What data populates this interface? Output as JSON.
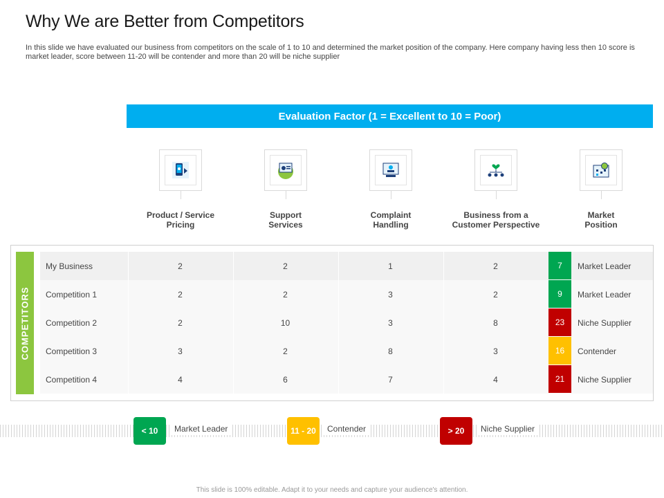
{
  "title": "Why We are Better from Competitors",
  "intro": "In this slide we have evaluated our business from competitors on the scale of  1 to  10 and determined the market position of the company. Here company having less then 10 score is market leader, score between 11-20 will be contender and more than 20 will be niche supplier",
  "banner": "Evaluation Factor (1 = Excellent to 10 = Poor)",
  "factors": [
    {
      "line1": "Product / Service",
      "line2": "Pricing",
      "icon": "mobile-pricing-icon"
    },
    {
      "line1": "Support",
      "line2": "Services",
      "icon": "support-services-icon"
    },
    {
      "line1": "Complaint",
      "line2": "Handling",
      "icon": "complaint-handling-icon"
    },
    {
      "line1": "Business from a",
      "line2": "Customer Perspective",
      "icon": "customer-perspective-icon"
    },
    {
      "line1": "Market",
      "line2": "Position",
      "icon": "market-position-icon"
    }
  ],
  "competitors_label": "COMPETITORS",
  "rows": [
    {
      "name": "My Business",
      "scores": [
        "2",
        "2",
        "1",
        "2"
      ],
      "total": "7",
      "status": "Market Leader",
      "color": "#00a651"
    },
    {
      "name": "Competition 1",
      "scores": [
        "2",
        "2",
        "3",
        "2"
      ],
      "total": "9",
      "status": "Market Leader",
      "color": "#00a651"
    },
    {
      "name": "Competition 2",
      "scores": [
        "2",
        "10",
        "3",
        "8"
      ],
      "total": "23",
      "status": "Niche Supplier",
      "color": "#c00000"
    },
    {
      "name": "Competition 3",
      "scores": [
        "3",
        "2",
        "8",
        "3"
      ],
      "total": "16",
      "status": "Contender",
      "color": "#ffc000"
    },
    {
      "name": "Competition 4",
      "scores": [
        "4",
        "6",
        "7",
        "4"
      ],
      "total": "21",
      "status": "Niche Supplier",
      "color": "#c00000"
    }
  ],
  "legend": [
    {
      "badge": "< 10",
      "label": "Market Leader",
      "color": "#00a651"
    },
    {
      "badge": "11 - 20",
      "label": "Contender",
      "color": "#ffc000"
    },
    {
      "badge": "> 20",
      "label": "Niche Supplier",
      "color": "#c00000"
    }
  ],
  "colors": {
    "accent": "#00aeef",
    "competitors_bar": "#8cc63f"
  },
  "footer": "This slide is 100% editable.  Adapt it to your needs and capture your audience's attention."
}
